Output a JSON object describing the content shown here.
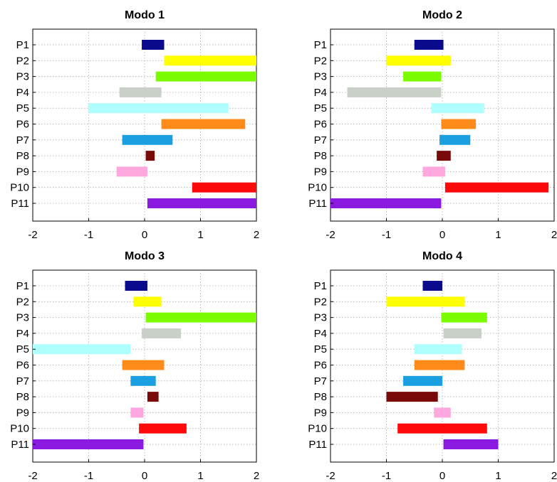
{
  "chart_data": [
    {
      "type": "bar",
      "orientation": "horizontal",
      "title": "Modo 1",
      "categories": [
        "P1",
        "P2",
        "P3",
        "P4",
        "P5",
        "P6",
        "P7",
        "P8",
        "P9",
        "P10",
        "P11"
      ],
      "ranges": [
        [
          -0.05,
          0.35
        ],
        [
          0.35,
          2.0
        ],
        [
          0.2,
          2.0
        ],
        [
          -0.45,
          0.3
        ],
        [
          -1.0,
          1.5
        ],
        [
          0.3,
          1.8
        ],
        [
          -0.4,
          0.5
        ],
        [
          0.02,
          0.18
        ],
        [
          -0.5,
          0.05
        ],
        [
          0.85,
          2.0
        ],
        [
          0.05,
          2.0
        ]
      ],
      "xlim": [
        -2,
        2
      ],
      "xticks": [
        "-2",
        "-1",
        "0",
        "1",
        "2"
      ],
      "grid": true
    },
    {
      "type": "bar",
      "orientation": "horizontal",
      "title": "Modo 2",
      "categories": [
        "P1",
        "P2",
        "P3",
        "P4",
        "P5",
        "P6",
        "P7",
        "P8",
        "P9",
        "P10",
        "P11"
      ],
      "ranges": [
        [
          -0.5,
          0.02
        ],
        [
          -1.0,
          0.15
        ],
        [
          -0.7,
          -0.02
        ],
        [
          -1.7,
          -0.02
        ],
        [
          -0.2,
          0.75
        ],
        [
          -0.02,
          0.6
        ],
        [
          -0.05,
          0.5
        ],
        [
          -0.1,
          0.15
        ],
        [
          -0.35,
          0.05
        ],
        [
          0.05,
          1.9
        ],
        [
          -2.0,
          -0.02
        ]
      ],
      "xlim": [
        -2,
        2
      ],
      "xticks": [
        "-2",
        "-1",
        "0",
        "1",
        "2"
      ],
      "grid": true
    },
    {
      "type": "bar",
      "orientation": "horizontal",
      "title": "Modo 3",
      "categories": [
        "P1",
        "P2",
        "P3",
        "P4",
        "P5",
        "P6",
        "P7",
        "P8",
        "P9",
        "P10",
        "P11"
      ],
      "ranges": [
        [
          -0.35,
          0.05
        ],
        [
          -0.2,
          0.3
        ],
        [
          0.02,
          2.0
        ],
        [
          -0.05,
          0.65
        ],
        [
          -2.0,
          -0.25
        ],
        [
          -0.4,
          0.35
        ],
        [
          -0.25,
          0.2
        ],
        [
          0.05,
          0.25
        ],
        [
          -0.25,
          -0.02
        ],
        [
          -0.1,
          0.75
        ],
        [
          -2.0,
          -0.02
        ]
      ],
      "xlim": [
        -2,
        2
      ],
      "xticks": [
        "-2",
        "-1",
        "0",
        "1",
        "2"
      ],
      "grid": true
    },
    {
      "type": "bar",
      "orientation": "horizontal",
      "title": "Modo 4",
      "categories": [
        "P1",
        "P2",
        "P3",
        "P4",
        "P5",
        "P6",
        "P7",
        "P8",
        "P9",
        "P10",
        "P11"
      ],
      "ranges": [
        [
          -0.35,
          0.0
        ],
        [
          -1.0,
          0.4
        ],
        [
          -0.02,
          0.8
        ],
        [
          0.02,
          0.7
        ],
        [
          -0.5,
          0.35
        ],
        [
          -0.5,
          0.4
        ],
        [
          -0.7,
          0.0
        ],
        [
          -1.0,
          -0.08
        ],
        [
          -0.15,
          0.15
        ],
        [
          -0.8,
          0.8
        ],
        [
          0.02,
          1.0
        ]
      ],
      "xlim": [
        -2,
        2
      ],
      "xticks": [
        "-2",
        "-1",
        "0",
        "1",
        "2"
      ],
      "grid": true
    }
  ],
  "series_colors": [
    "#0a0a8c",
    "#ffff00",
    "#7cfc00",
    "#c8d0c8",
    "#b0ffff",
    "#ff8c1a",
    "#1aa0e0",
    "#7a0a0a",
    "#ffa8e0",
    "#ff0a0a",
    "#8a1ae0"
  ]
}
